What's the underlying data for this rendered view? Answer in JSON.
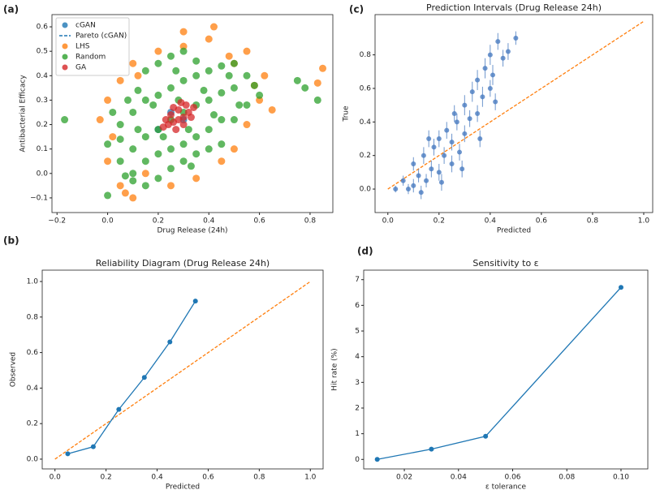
{
  "chart_data": [
    {
      "type": "scatter",
      "panel_label": "(a)",
      "x_label": "Drug Release (24h)",
      "y_label": "Antibacterial Efficacy",
      "xlim": [
        -0.22,
        0.89
      ],
      "ylim": [
        -0.16,
        0.65
      ],
      "xticks": [
        {
          "value": -0.2,
          "label": "−0.2"
        },
        {
          "value": 0,
          "label": "0.0"
        },
        0.2,
        0.4,
        0.6,
        0.8
      ],
      "yticks": [
        {
          "value": -0.1,
          "label": "−0.1"
        },
        {
          "value": 0,
          "label": "0.0"
        },
        0.1,
        0.2,
        0.3,
        0.4,
        0.5,
        0.6
      ],
      "legend": "upper left",
      "series": [
        {
          "name": "cGAN",
          "color": "#1f77b4",
          "marker": "point",
          "x": [
            0.2,
            0.3,
            0.25
          ],
          "values": [
            0.18,
            0.22,
            0.25
          ]
        },
        {
          "name": "Pareto (cGAN)",
          "color": "#1f77b4",
          "marker": "dashed",
          "x": [],
          "values": []
        },
        {
          "name": "LHS",
          "color": "#ff7f0e",
          "marker": "point",
          "x": [
            -0.03,
            0.0,
            0.05,
            0.1,
            0.12,
            0.2,
            0.3,
            0.4,
            0.5,
            0.55,
            0.6,
            0.62,
            0.55,
            0.45,
            0.35,
            0.25,
            0.0,
            0.05,
            0.83,
            0.85,
            0.5,
            0.15,
            0.42,
            0.65,
            0.02,
            0.1,
            0.3,
            0.58,
            0.48,
            0.07
          ],
          "values": [
            0.22,
            0.05,
            -0.05,
            -0.1,
            0.4,
            0.5,
            0.58,
            0.55,
            0.45,
            0.5,
            0.3,
            0.4,
            0.2,
            0.05,
            -0.02,
            -0.05,
            0.3,
            0.38,
            0.37,
            0.43,
            0.1,
            0.0,
            0.6,
            0.26,
            0.15,
            0.45,
            0.52,
            0.36,
            0.48,
            -0.08
          ]
        },
        {
          "name": "Random",
          "color": "#2ca02c",
          "marker": "point",
          "x": [
            -0.17,
            0.78,
            0.75,
            0.83,
            0.0,
            0.05,
            0.1,
            0.15,
            0.2,
            0.25,
            0.3,
            0.35,
            0.4,
            0.45,
            0.5,
            0.05,
            0.1,
            0.15,
            0.2,
            0.25,
            0.3,
            0.35,
            0.4,
            0.45,
            0.5,
            0.55,
            0.1,
            0.15,
            0.2,
            0.25,
            0.3,
            0.35,
            0.4,
            0.45,
            0.0,
            0.05,
            0.1,
            0.15,
            0.2,
            0.25,
            0.3,
            0.35,
            0.4,
            0.2,
            0.25,
            0.3,
            0.35,
            0.15,
            0.45,
            0.5,
            0.55,
            0.6,
            0.02,
            0.08,
            0.12,
            0.18,
            0.28,
            0.38,
            0.48,
            0.58,
            0.22,
            0.32,
            0.42,
            0.52,
            0.12,
            0.07,
            0.33,
            0.27
          ],
          "values": [
            0.22,
            0.35,
            0.38,
            0.3,
            -0.09,
            0.05,
            0.1,
            0.15,
            0.18,
            0.22,
            0.25,
            0.28,
            0.3,
            0.33,
            0.35,
            0.2,
            0.25,
            0.3,
            0.32,
            0.35,
            0.38,
            0.4,
            0.42,
            0.44,
            0.45,
            0.4,
            0.0,
            0.05,
            0.08,
            0.1,
            0.12,
            0.15,
            0.18,
            0.22,
            0.12,
            0.14,
            -0.03,
            -0.05,
            -0.02,
            0.02,
            0.05,
            0.08,
            0.1,
            0.45,
            0.48,
            0.5,
            0.46,
            0.42,
            0.12,
            0.22,
            0.28,
            0.32,
            0.25,
            0.3,
            0.34,
            0.28,
            0.3,
            0.34,
            0.4,
            0.36,
            0.15,
            0.18,
            0.24,
            0.28,
            0.18,
            -0.01,
            0.03,
            0.42
          ]
        },
        {
          "name": "GA",
          "color": "#d62728",
          "marker": "point",
          "x": [
            0.22,
            0.24,
            0.26,
            0.28,
            0.3,
            0.32,
            0.34,
            0.25,
            0.28,
            0.31,
            0.23,
            0.27,
            0.3,
            0.33,
            0.26,
            0.29
          ],
          "values": [
            0.19,
            0.2,
            0.21,
            0.22,
            0.23,
            0.25,
            0.27,
            0.24,
            0.26,
            0.28,
            0.22,
            0.18,
            0.2,
            0.23,
            0.27,
            0.29
          ]
        }
      ]
    },
    {
      "type": "line",
      "panel_label": "(b)",
      "title": "Reliability Diagram (Drug Release 24h)",
      "x_label": "Predicted",
      "y_label": "Observed",
      "xlim": [
        -0.05,
        1.05
      ],
      "ylim": [
        -0.055,
        1.064
      ],
      "xticks": [
        {
          "value": 0,
          "label": "0.0"
        },
        0.2,
        0.4,
        0.6,
        0.8,
        {
          "value": 1,
          "label": "1.0"
        }
      ],
      "yticks": [
        {
          "value": 0,
          "label": "0.0"
        },
        0.2,
        0.4,
        0.6,
        0.8,
        {
          "value": 1,
          "label": "1.0"
        }
      ],
      "diagonal": {
        "x": [
          0,
          1
        ],
        "y": [
          0,
          1
        ],
        "color": "#ff7f0e"
      },
      "series": [
        {
          "color": "#1f77b4",
          "x": [
            0.05,
            0.15,
            0.25,
            0.35,
            0.45,
            0.55
          ],
          "values": [
            0.03,
            0.07,
            0.28,
            0.46,
            0.66,
            0.89
          ]
        }
      ]
    },
    {
      "type": "errorbar",
      "panel_label": "(c)",
      "title": "Prediction Intervals (Drug Release 24h)",
      "x_label": "Predicted",
      "y_label": "True",
      "xlim": [
        -0.05,
        1.035
      ],
      "ylim": [
        -0.14,
        1.04
      ],
      "xticks": [
        {
          "value": 0,
          "label": "0.0"
        },
        0.2,
        0.4,
        0.6,
        0.8,
        {
          "value": 1,
          "label": "1.0"
        }
      ],
      "yticks": [
        {
          "value": 0,
          "label": "0.0"
        },
        0.2,
        0.4,
        0.6,
        0.8
      ],
      "diagonal": {
        "x": [
          0,
          1
        ],
        "y": [
          0,
          1
        ],
        "color": "#ff7f0e"
      },
      "series": [
        {
          "color": "#4a7cc0",
          "x": [
            0.03,
            0.06,
            0.08,
            0.1,
            0.1,
            0.12,
            0.14,
            0.15,
            0.17,
            0.18,
            0.2,
            0.2,
            0.22,
            0.23,
            0.25,
            0.25,
            0.27,
            0.28,
            0.3,
            0.3,
            0.32,
            0.33,
            0.35,
            0.35,
            0.37,
            0.38,
            0.4,
            0.4,
            0.42,
            0.43,
            0.45,
            0.47,
            0.5,
            0.16,
            0.26,
            0.13,
            0.21,
            0.29,
            0.36,
            0.41
          ],
          "values": [
            0.0,
            0.05,
            0.0,
            0.02,
            0.15,
            0.08,
            0.2,
            0.05,
            0.12,
            0.25,
            0.1,
            0.3,
            0.2,
            0.35,
            0.28,
            0.15,
            0.4,
            0.22,
            0.33,
            0.5,
            0.42,
            0.58,
            0.45,
            0.65,
            0.55,
            0.72,
            0.6,
            0.8,
            0.52,
            0.88,
            0.78,
            0.82,
            0.9,
            0.3,
            0.45,
            -0.02,
            0.04,
            0.12,
            0.3,
            0.68
          ],
          "errors": [
            0.02,
            0.03,
            0.03,
            0.04,
            0.04,
            0.04,
            0.05,
            0.04,
            0.05,
            0.05,
            0.05,
            0.05,
            0.05,
            0.05,
            0.05,
            0.05,
            0.05,
            0.05,
            0.05,
            0.06,
            0.05,
            0.06,
            0.05,
            0.06,
            0.06,
            0.06,
            0.05,
            0.06,
            0.05,
            0.05,
            0.05,
            0.05,
            0.04,
            0.05,
            0.05,
            0.04,
            0.05,
            0.05,
            0.05,
            0.06
          ]
        }
      ]
    },
    {
      "type": "line",
      "panel_label": "(d)",
      "title": "Sensitivity to ε",
      "x_label": "ε tolerance",
      "y_label": "Hit rate (%)",
      "xlim": [
        0.005,
        0.1099
      ],
      "ylim": [
        -0.37,
        7.37
      ],
      "xticks": [
        0.02,
        0.04,
        0.06,
        0.08,
        {
          "value": 0.1,
          "label": "0.10"
        }
      ],
      "yticks": [
        0,
        1,
        2,
        3,
        4,
        5,
        6,
        7
      ],
      "series": [
        {
          "color": "#1f77b4",
          "x": [
            0.01,
            0.03,
            0.05,
            0.1
          ],
          "values": [
            0,
            0.4,
            0.9,
            6.7
          ]
        }
      ]
    }
  ]
}
